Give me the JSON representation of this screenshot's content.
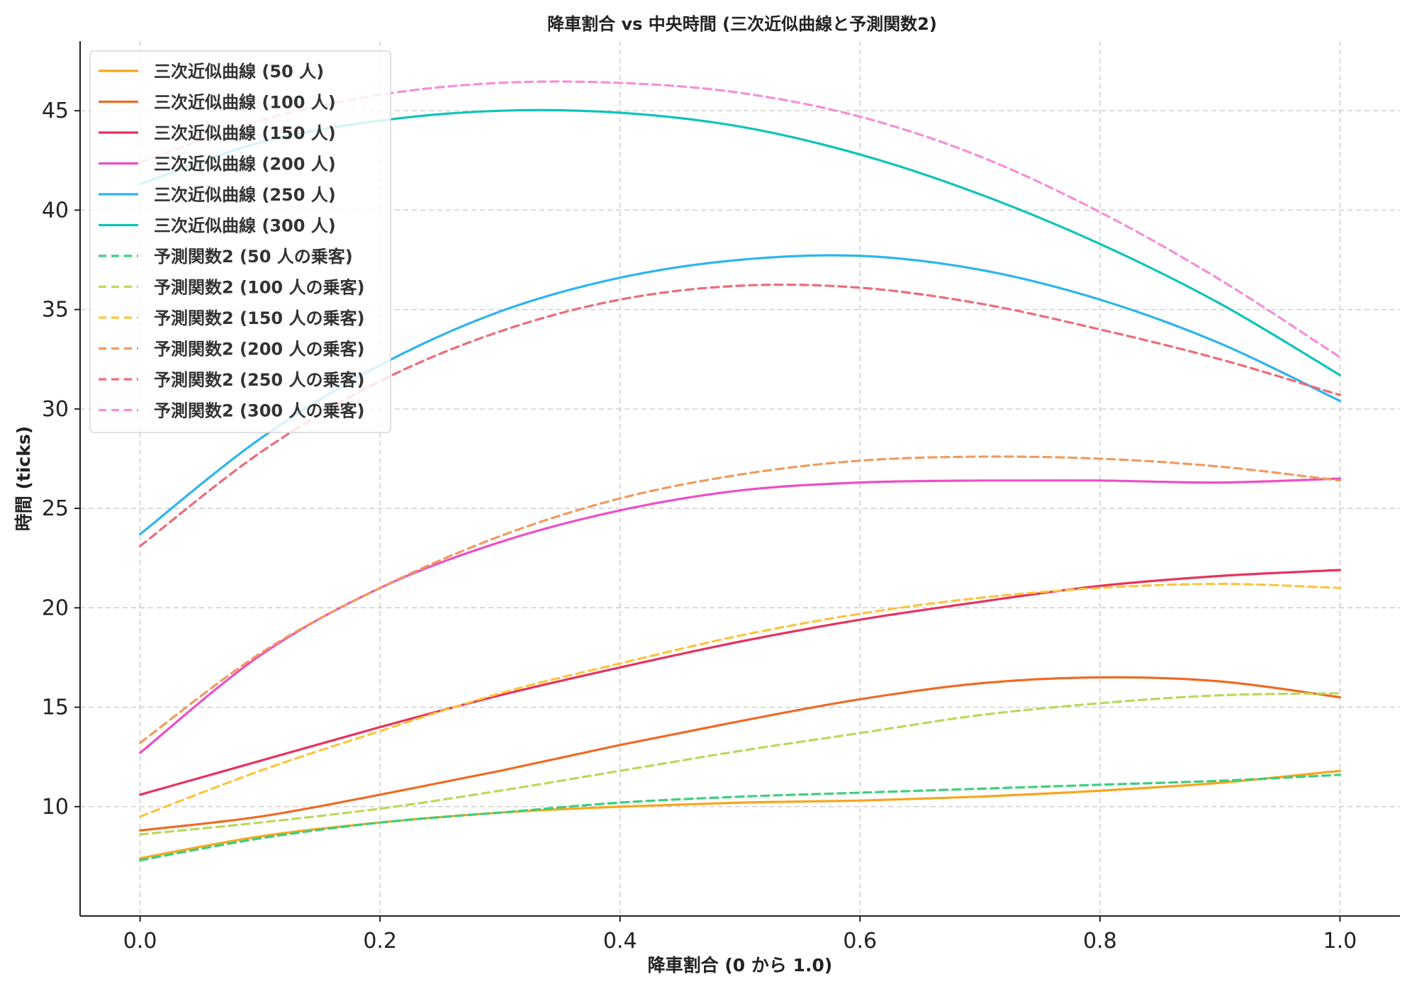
{
  "chart_data": {
    "type": "line",
    "title": "降車割合 vs 中央時間 (三次近似曲線と予測関数2)",
    "xlabel": "降車割合 (0 から 1.0)",
    "ylabel": "時間 (ticks)",
    "xlim": [
      -0.05,
      1.05
    ],
    "ylim": [
      4.5,
      48.5
    ],
    "xticks": [
      0.0,
      0.2,
      0.4,
      0.6,
      0.8,
      1.0
    ],
    "xtick_labels": [
      "0.0",
      "0.2",
      "0.4",
      "0.6",
      "0.8",
      "1.0"
    ],
    "yticks": [
      10,
      15,
      20,
      25,
      30,
      35,
      40,
      45
    ],
    "ytick_labels": [
      "10",
      "15",
      "20",
      "25",
      "30",
      "35",
      "40",
      "45"
    ],
    "grid": true,
    "legend_position": "top-left",
    "x": [
      0.0,
      0.1,
      0.2,
      0.3,
      0.4,
      0.5,
      0.6,
      0.7,
      0.8,
      0.9,
      1.0
    ],
    "series": [
      {
        "name": "三次近似曲線 (50 人)",
        "color": "#f8a51c",
        "style": "solid",
        "values": [
          7.4,
          8.5,
          9.2,
          9.7,
          10.0,
          10.2,
          10.3,
          10.5,
          10.8,
          11.2,
          11.8
        ]
      },
      {
        "name": "三次近似曲線 (100 人)",
        "color": "#ee6b24",
        "style": "solid",
        "values": [
          8.8,
          9.5,
          10.6,
          11.8,
          13.1,
          14.3,
          15.4,
          16.2,
          16.5,
          16.3,
          15.5
        ]
      },
      {
        "name": "三次近似曲線 (150 人)",
        "color": "#e8315c",
        "style": "solid",
        "values": [
          10.6,
          12.3,
          14.0,
          15.6,
          17.0,
          18.3,
          19.4,
          20.3,
          21.1,
          21.6,
          21.9
        ]
      },
      {
        "name": "三次近似曲線 (200 人)",
        "color": "#ee4ec4",
        "style": "solid",
        "values": [
          12.7,
          17.6,
          21.0,
          23.3,
          24.9,
          25.9,
          26.3,
          26.4,
          26.4,
          26.3,
          26.5
        ]
      },
      {
        "name": "三次近似曲線 (250 人)",
        "color": "#2eb4ef",
        "style": "solid",
        "values": [
          23.7,
          28.5,
          32.2,
          34.9,
          36.6,
          37.5,
          37.7,
          37.0,
          35.5,
          33.3,
          30.4
        ]
      },
      {
        "name": "三次近似曲線 (300 人)",
        "color": "#0ec4b8",
        "style": "solid",
        "values": [
          41.3,
          43.4,
          44.5,
          45.0,
          44.9,
          44.2,
          42.8,
          40.8,
          38.3,
          35.3,
          31.7
        ]
      },
      {
        "name": "予測関数2 (50 人の乗客)",
        "color": "#3ccf7c",
        "style": "dashed",
        "values": [
          7.3,
          8.4,
          9.2,
          9.7,
          10.2,
          10.5,
          10.7,
          10.9,
          11.1,
          11.3,
          11.6
        ]
      },
      {
        "name": "予測関数2 (100 人の乗客)",
        "color": "#b9d95a",
        "style": "dashed",
        "values": [
          8.6,
          9.2,
          9.9,
          10.8,
          11.8,
          12.8,
          13.7,
          14.6,
          15.2,
          15.6,
          15.7
        ]
      },
      {
        "name": "予測関数2 (150 人の乗客)",
        "color": "#fcc53f",
        "style": "dashed",
        "values": [
          9.5,
          11.8,
          13.8,
          15.7,
          17.2,
          18.6,
          19.7,
          20.5,
          21.0,
          21.2,
          21.0
        ]
      },
      {
        "name": "予測関数2 (200 人の乗客)",
        "color": "#f09a5e",
        "style": "dashed",
        "values": [
          13.2,
          17.7,
          21.0,
          23.6,
          25.5,
          26.7,
          27.4,
          27.6,
          27.5,
          27.1,
          26.4
        ]
      },
      {
        "name": "予測関数2 (250 人の乗客)",
        "color": "#ef6a78",
        "style": "dashed",
        "values": [
          23.1,
          27.8,
          31.4,
          33.9,
          35.5,
          36.2,
          36.1,
          35.3,
          34.0,
          32.5,
          30.7
        ]
      },
      {
        "name": "予測関数2 (300 人の乗客)",
        "color": "#f68ed8",
        "style": "dashed",
        "values": [
          42.4,
          44.5,
          45.8,
          46.4,
          46.4,
          45.9,
          44.7,
          42.7,
          39.9,
          36.5,
          32.6
        ]
      }
    ]
  }
}
